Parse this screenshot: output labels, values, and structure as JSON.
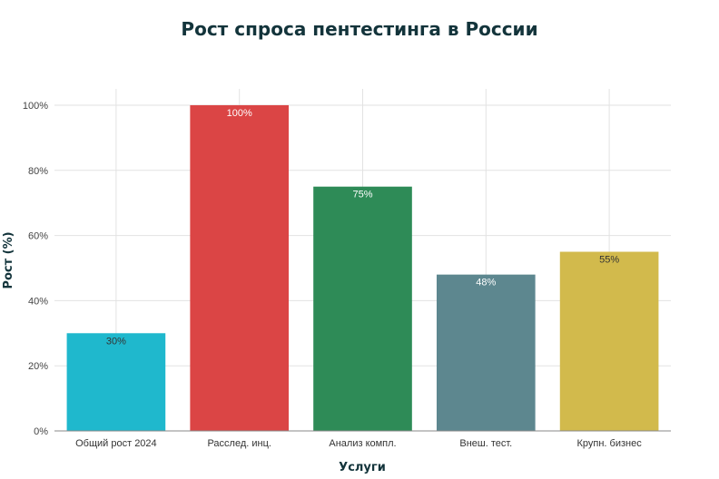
{
  "chart_data": {
    "type": "bar",
    "title": "Рост спроса пентестинга в России",
    "xlabel": "Услуги",
    "ylabel": "Рост (%)",
    "categories": [
      "Общий рост 2024",
      "Расслед. инц.",
      "Анализ компл.",
      "Внеш. тест.",
      "Крупн. бизнес"
    ],
    "values": [
      30,
      100,
      75,
      48,
      55
    ],
    "data_labels": [
      "30%",
      "100%",
      "75%",
      "48%",
      "55%"
    ],
    "colors": [
      "#1fb8cd",
      "#db4545",
      "#2e8b57",
      "#5d878f",
      "#d2ba4c"
    ],
    "label_colors": [
      "#333333",
      "#ffffff",
      "#ffffff",
      "#ffffff",
      "#333333"
    ],
    "ylim": [
      0,
      105
    ],
    "yticks": [
      0,
      20,
      40,
      60,
      80,
      100
    ],
    "ytick_labels": [
      "0%",
      "20%",
      "40%",
      "60%",
      "80%",
      "100%"
    ],
    "grid": true,
    "legend": "none"
  }
}
